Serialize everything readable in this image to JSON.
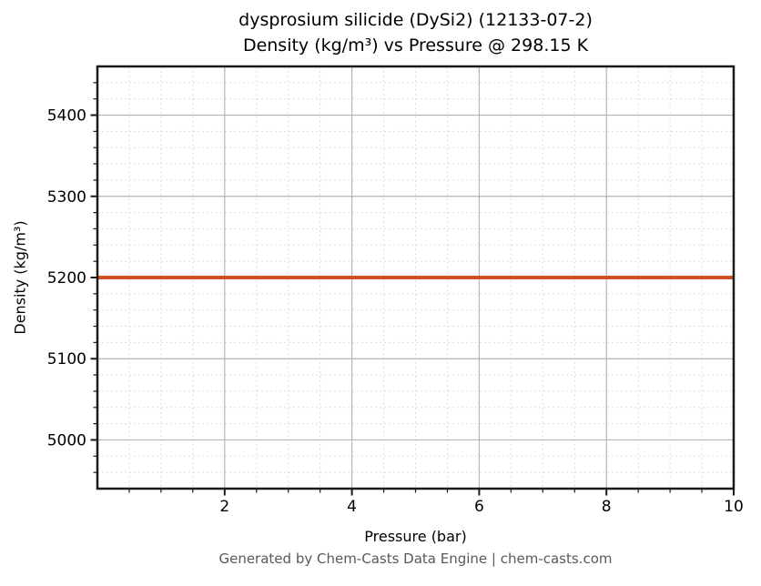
{
  "figure": {
    "background": "#ffffff",
    "footer": {
      "text": "Generated by Chem-Casts Data Engine | chem-casts.com",
      "color": "#595959"
    }
  },
  "chart_data": {
    "type": "line",
    "title": "dysprosium silicide (DySi2) (12133-07-2)",
    "subtitle": "Density (kg/m³) vs Pressure @ 298.15 K",
    "xlabel": "Pressure (bar)",
    "ylabel": "Density (kg/m³)",
    "xlim": [
      0,
      10
    ],
    "ylim": [
      4940,
      5460
    ],
    "xticks": [
      2,
      4,
      6,
      8,
      10
    ],
    "yticks": [
      5000,
      5100,
      5200,
      5300,
      5400
    ],
    "minor_x_step": 0.5,
    "minor_y_step": 20,
    "grid": {
      "major": true,
      "minor": true,
      "major_color": "#b5b5b5",
      "minor_color": "#dddddd"
    },
    "legend": "none",
    "axis_color": "#1a1a1a",
    "tick_label_color": "#000000",
    "series": [
      {
        "name": "Density",
        "color": "#d1511e",
        "constant_value": 5200,
        "x": [
          0,
          1,
          2,
          3,
          4,
          5,
          6,
          7,
          8,
          9,
          10
        ],
        "y": [
          5200,
          5200,
          5200,
          5200,
          5200,
          5200,
          5200,
          5200,
          5200,
          5200,
          5200
        ]
      }
    ]
  }
}
